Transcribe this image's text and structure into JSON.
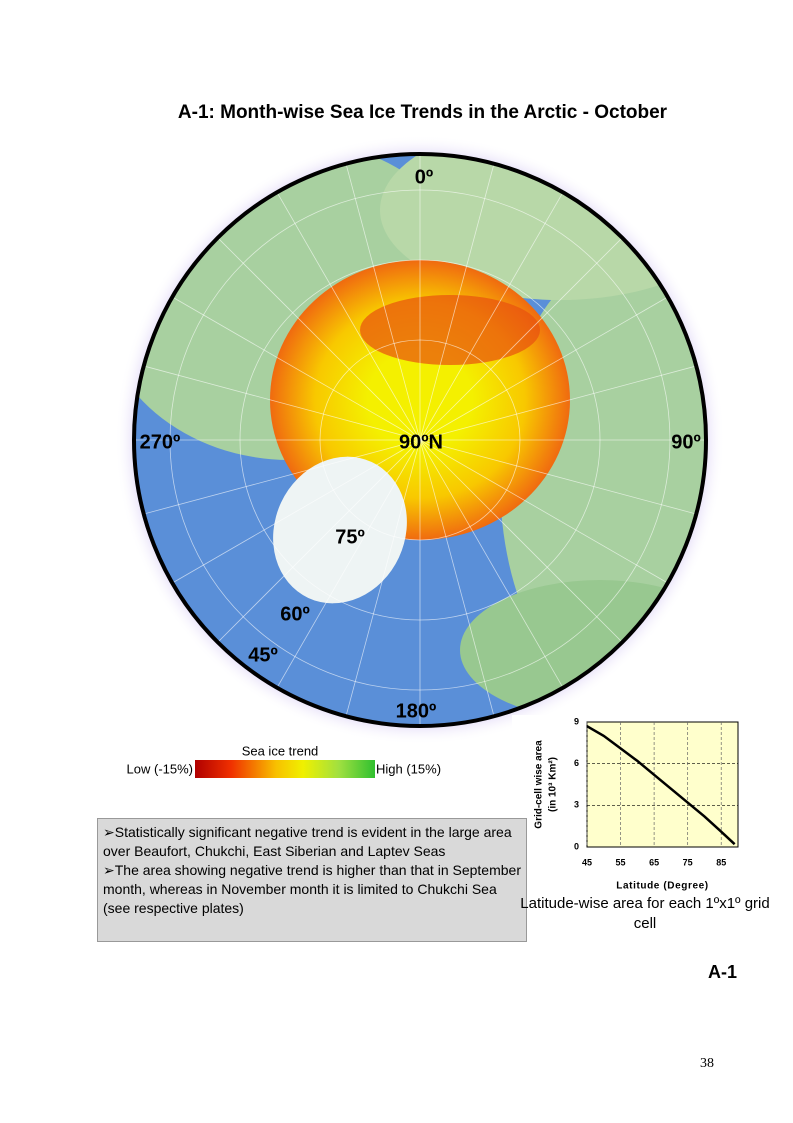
{
  "title": "A-1: Month-wise Sea Ice Trends in the Arctic - October",
  "map": {
    "labels": [
      "0º",
      "270º",
      "90ºN",
      "90º",
      "75º",
      "60º",
      "45º",
      "180º"
    ]
  },
  "legend": {
    "title": "Sea ice trend",
    "low": "Low (-15%)",
    "high": "High (15%)"
  },
  "notes": [
    "➢Statistically significant negative trend is evident in the large area over Beaufort, Chukchi, East Siberian and Laptev Seas",
    "➢The area showing negative trend is higher than that in September month, whereas in November month it is limited to Chukchi Sea (see respective plates)"
  ],
  "chart_data": {
    "type": "line",
    "x_label": "Latitude (Degree)",
    "y_label": [
      "Grid-cell wise area",
      "(in 10³ Km²)"
    ],
    "x": [
      45,
      50,
      55,
      60,
      65,
      70,
      75,
      80,
      85,
      89
    ],
    "series": [
      {
        "color": "#000000",
        "values": [
          8.7,
          8.0,
          7.1,
          6.2,
          5.2,
          4.2,
          3.2,
          2.2,
          1.1,
          0.2
        ]
      }
    ],
    "xlim": [
      45,
      90
    ],
    "ylim": [
      0,
      9
    ],
    "xticks": [
      45,
      55,
      65,
      75,
      85
    ],
    "yticks": [
      0,
      3,
      6,
      9
    ],
    "grid": true
  },
  "caption": "Latitude-wise area for each 1ºx1º grid cell",
  "plate_label": "A-1",
  "page_number": "38"
}
